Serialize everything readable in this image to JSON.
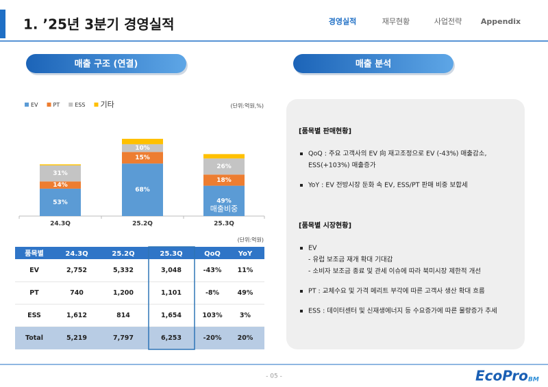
{
  "header": {
    "title": "1. ’25년 3분기 경영실적",
    "nav": [
      "경영실적",
      "재무현황",
      "사업전략",
      "Appendix"
    ]
  },
  "left_section": {
    "title": "매출 구조 (연결)"
  },
  "chart_data": {
    "type": "bar",
    "stacked": true,
    "unit": "(단위:억원,%)",
    "legend_position": "top-left",
    "categories": [
      "24.3Q",
      "25.2Q",
      "25.3Q"
    ],
    "series": [
      {
        "name": "EV",
        "color": "#5b9bd5",
        "values": [
          53,
          68,
          49
        ],
        "value_labels": [
          "53%",
          "68%",
          "49%"
        ]
      },
      {
        "name": "PT",
        "color": "#ed7d31",
        "values": [
          14,
          15,
          18
        ],
        "value_labels": [
          "14%",
          "15%",
          "18%"
        ]
      },
      {
        "name": "ESS",
        "color": "#c4c4c4",
        "values": [
          31,
          10,
          26
        ],
        "value_labels": [
          "31%",
          "10%",
          "26%"
        ]
      },
      {
        "name": "기타",
        "color": "#ffc000",
        "values": [
          2,
          7,
          7
        ]
      }
    ],
    "annotation": "매출비중"
  },
  "table": {
    "unit": "(단위:억원)",
    "header": [
      "품목별",
      "24.3Q",
      "25.2Q",
      "25.3Q",
      "QoQ",
      "YoY"
    ],
    "rows": [
      [
        "EV",
        "2,752",
        "5,332",
        "3,048",
        "-43%",
        "11%"
      ],
      [
        "PT",
        "740",
        "1,200",
        "1,101",
        "-8%",
        "49%"
      ],
      [
        "ESS",
        "1,612",
        "814",
        "1,654",
        "103%",
        "3%"
      ],
      [
        "Total",
        "5,219",
        "7,797",
        "6,253",
        "-20%",
        "20%"
      ]
    ]
  },
  "right_section": {
    "title": "매출 분석",
    "groups": [
      {
        "heading": "[품목별 판매현황]",
        "items": [
          {
            "lines": [
              "QoQ : 주요 고객사의 EV 向 재고조정으로 EV (-43%) 매출감소,",
              "ESS(+103%) 매출증가"
            ]
          },
          {
            "lines": [
              "YoY : EV 전방시장 둔화 속 EV, ESS/PT 판매 비중 보합세"
            ]
          }
        ]
      },
      {
        "heading": "[품목별 시장현황]",
        "items": [
          {
            "lines": [
              "EV",
              "- 유럽 보조금 재개 확대 기대감",
              "- 소비자 보조금 종료 및 관세 이슈에 따라 북미시장 제한적 개선"
            ]
          },
          {
            "lines": [
              "PT   : 교체수요 및 가격 메리트 부각에 따른 고객사 생산 확대 흐름"
            ]
          },
          {
            "lines": [
              "ESS : 데이터센터 및 신재생에너지 등 수요증가에 따른 물량증가 추세"
            ]
          }
        ]
      }
    ]
  },
  "footer": {
    "page": "- 05 -",
    "logo": "EcoPro",
    "logo_suffix": "BM"
  }
}
